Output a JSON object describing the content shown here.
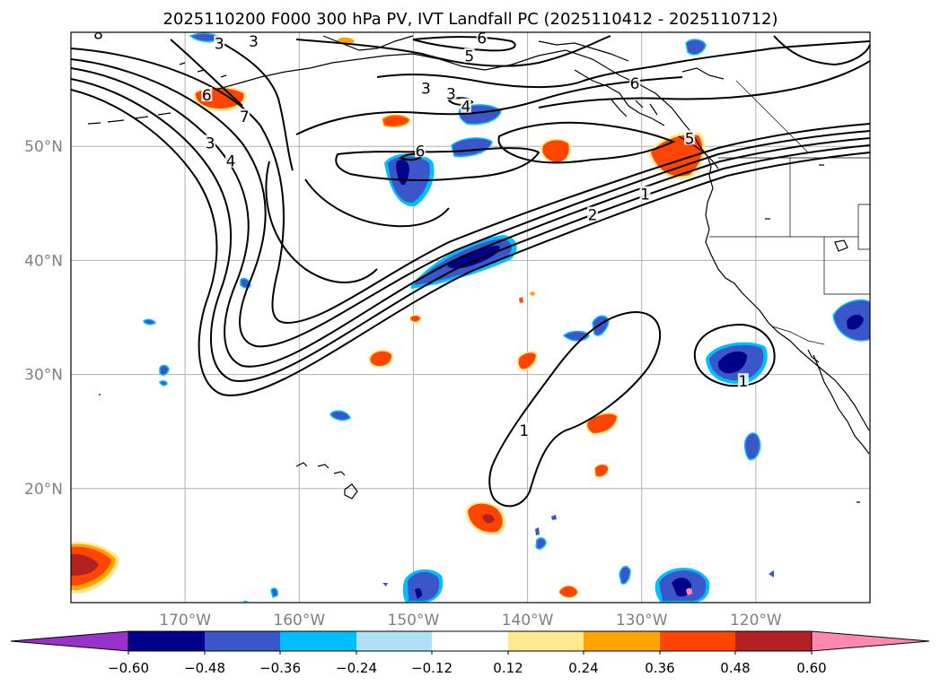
{
  "title": "2025110200 F000 300 hPa PV, IVT Landfall PC (2025110412 - 2025110712)",
  "map": {
    "lon_range": [
      -180,
      -110
    ],
    "lat_range": [
      10,
      60
    ],
    "lon_ticks": [
      {
        "lon": -170,
        "label": "170°W"
      },
      {
        "lon": -160,
        "label": "160°W"
      },
      {
        "lon": -150,
        "label": "150°W"
      },
      {
        "lon": -140,
        "label": "140°W"
      },
      {
        "lon": -130,
        "label": "130°W"
      },
      {
        "lon": -120,
        "label": "120°W"
      }
    ],
    "lat_ticks": [
      {
        "lat": 50,
        "label": "50°N"
      },
      {
        "lat": 40,
        "label": "40°N"
      },
      {
        "lat": 30,
        "label": "30°N"
      },
      {
        "lat": 20,
        "label": "20°N"
      }
    ],
    "pv_contour_labels": [
      {
        "lon": -177.6,
        "lat": 59.9,
        "text": "8"
      },
      {
        "lon": -167.0,
        "lat": 59.0,
        "text": "3"
      },
      {
        "lon": -164.0,
        "lat": 59.2,
        "text": "3"
      },
      {
        "lon": -144.0,
        "lat": 59.5,
        "text": "6"
      },
      {
        "lon": -145.1,
        "lat": 57.9,
        "text": "5"
      },
      {
        "lon": -148.9,
        "lat": 55.1,
        "text": "3"
      },
      {
        "lon": -146.7,
        "lat": 54.6,
        "text": "3"
      },
      {
        "lon": -145.4,
        "lat": 53.5,
        "text": "4"
      },
      {
        "lon": -130.6,
        "lat": 55.5,
        "text": "6"
      },
      {
        "lon": -168.1,
        "lat": 54.5,
        "text": "6"
      },
      {
        "lon": -164.8,
        "lat": 52.6,
        "text": "7"
      },
      {
        "lon": -167.8,
        "lat": 50.3,
        "text": "3"
      },
      {
        "lon": -166.0,
        "lat": 48.7,
        "text": "4"
      },
      {
        "lon": -149.4,
        "lat": 49.6,
        "text": "6"
      },
      {
        "lon": -134.3,
        "lat": 44.0,
        "text": "2"
      },
      {
        "lon": -129.7,
        "lat": 45.8,
        "text": "1"
      },
      {
        "lon": -125.8,
        "lat": 50.7,
        "text": "5"
      },
      {
        "lon": -121.1,
        "lat": 29.4,
        "text": "1"
      },
      {
        "lon": -140.3,
        "lat": 25.1,
        "text": "1"
      }
    ]
  },
  "colorbar": {
    "ticks": [
      "−0.60",
      "−0.48",
      "−0.36",
      "−0.24",
      "−0.12",
      "0.12",
      "0.24",
      "0.36",
      "0.48",
      "0.60"
    ],
    "colors": {
      "neg_over": "#9932cc",
      "neg_060": "#00008b",
      "neg_048": "#3a56c8",
      "neg_036": "#00bfff",
      "neg_024": "#b0e0f6",
      "zero": "#ffffff",
      "pos_012": "#ffe98f",
      "pos_024": "#ffa500",
      "pos_036": "#ff4500",
      "pos_048": "#b22222",
      "pos_over": "#ff88b0"
    }
  }
}
